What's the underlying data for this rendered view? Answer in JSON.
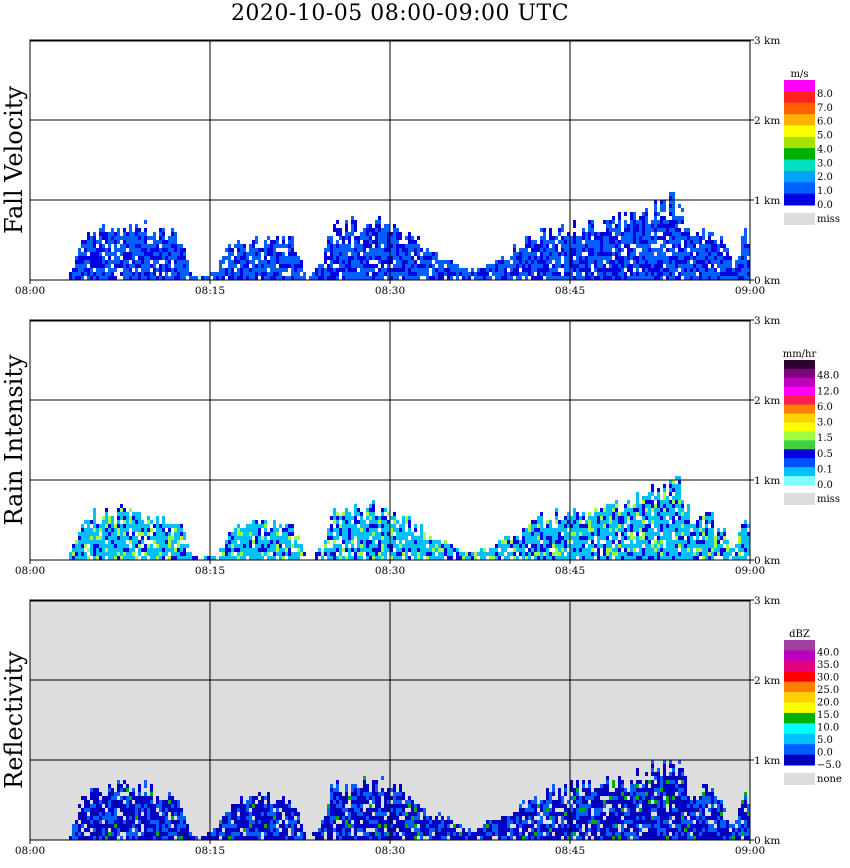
{
  "title": "2020-10-05   08:00-09:00 UTC",
  "colors": {
    "missing_gray": "#dddddd",
    "grid": "#000000"
  },
  "chart_data": [
    {
      "type": "heatmap",
      "name": "fall-velocity",
      "ylabel": "Fall Velocity",
      "x_ticks": [
        "08:00",
        "08:15",
        "08:30",
        "08:45",
        "09:00"
      ],
      "y_ticks": [
        "0 km",
        "1 km",
        "2 km",
        "3 km"
      ],
      "xlim": [
        "08:00",
        "09:00"
      ],
      "ylim_km": [
        0,
        3.0
      ],
      "background": "#ffffff",
      "colorbar": {
        "unit": "m/s",
        "labels": [
          "8.0",
          "7.0",
          "6.0",
          "5.0",
          "4.0",
          "3.0",
          "2.0",
          "1.0",
          "0.0"
        ],
        "colors": [
          "#ff00ff",
          "#ff2020",
          "#ff6000",
          "#ffb000",
          "#ffff00",
          "#a8e000",
          "#00b000",
          "#00e0c0",
          "#00a0ff",
          "#0060ff",
          "#0000e0"
        ],
        "missing_label": "miss",
        "missing_color": "#dddddd"
      },
      "echo_top_km": [
        [
          0.5,
          0
        ],
        [
          3,
          0
        ],
        [
          4.5,
          0.6
        ],
        [
          7,
          0.7
        ],
        [
          10,
          0.65
        ],
        [
          12.5,
          0.55
        ],
        [
          13.2,
          0.1
        ],
        [
          14,
          0
        ],
        [
          15.5,
          0.15
        ],
        [
          16.5,
          0.45
        ],
        [
          18,
          0.5
        ],
        [
          21,
          0.55
        ],
        [
          22,
          0.45
        ],
        [
          23,
          0
        ],
        [
          24.2,
          0.2
        ],
        [
          25,
          0.65
        ],
        [
          27,
          0.7
        ],
        [
          29,
          0.72
        ],
        [
          30.5,
          0.65
        ],
        [
          32,
          0.5
        ],
        [
          33,
          0.35
        ],
        [
          35,
          0.25
        ],
        [
          36,
          0.15
        ],
        [
          37,
          0.12
        ],
        [
          38,
          0.2
        ],
        [
          40,
          0.35
        ],
        [
          42,
          0.55
        ],
        [
          45,
          0.65
        ],
        [
          48,
          0.7
        ],
        [
          51,
          0.85
        ],
        [
          54,
          1.0
        ],
        [
          55,
          0.55
        ],
        [
          56,
          0.7
        ],
        [
          57.5,
          0.5
        ],
        [
          58.5,
          0.2
        ],
        [
          59.5,
          0.6
        ],
        [
          60,
          0.4
        ]
      ],
      "precip_classes": [
        {
          "label": "2.0",
          "share": 0.6
        },
        {
          "label": "1.0",
          "share": 0.3
        },
        {
          "label": "0.0",
          "share": 0.1
        }
      ]
    },
    {
      "type": "heatmap",
      "name": "rain-intensity",
      "ylabel": "Rain Intensity",
      "x_ticks": [
        "08:00",
        "08:15",
        "08:30",
        "08:45",
        "09:00"
      ],
      "y_ticks": [
        "0 km",
        "1 km",
        "2 km",
        "3 km"
      ],
      "xlim": [
        "08:00",
        "09:00"
      ],
      "ylim_km": [
        0,
        3.0
      ],
      "background": "#ffffff",
      "colorbar": {
        "unit": "mm/hr",
        "labels": [
          "48.0",
          "12.0",
          "6.0",
          "3.0",
          "1.5",
          "0.5",
          "0.1",
          "0.0"
        ],
        "colors": [
          "#300030",
          "#800080",
          "#c000c0",
          "#ff00ff",
          "#ff2050",
          "#ff8000",
          "#ffd000",
          "#ffff00",
          "#a0ff40",
          "#40d040",
          "#0000e0",
          "#0050ff",
          "#00c0ff",
          "#80ffff"
        ],
        "missing_label": "miss",
        "missing_color": "#dddddd"
      },
      "echo_top_km": [
        [
          0.5,
          0
        ],
        [
          3,
          0
        ],
        [
          4.5,
          0.55
        ],
        [
          7,
          0.6
        ],
        [
          10,
          0.55
        ],
        [
          12.5,
          0.45
        ],
        [
          13.2,
          0.1
        ],
        [
          14,
          0
        ],
        [
          15.5,
          0.1
        ],
        [
          16.5,
          0.4
        ],
        [
          18,
          0.45
        ],
        [
          21,
          0.5
        ],
        [
          22,
          0.4
        ],
        [
          23,
          0
        ],
        [
          24.2,
          0.15
        ],
        [
          25,
          0.6
        ],
        [
          27,
          0.65
        ],
        [
          29,
          0.65
        ],
        [
          30.5,
          0.6
        ],
        [
          32,
          0.45
        ],
        [
          33,
          0.3
        ],
        [
          35,
          0.2
        ],
        [
          36,
          0.1
        ],
        [
          37,
          0.1
        ],
        [
          38,
          0.15
        ],
        [
          40,
          0.3
        ],
        [
          42,
          0.5
        ],
        [
          45,
          0.6
        ],
        [
          48,
          0.65
        ],
        [
          51,
          0.8
        ],
        [
          54,
          0.95
        ],
        [
          55,
          0.5
        ],
        [
          56,
          0.6
        ],
        [
          57.5,
          0.45
        ],
        [
          58.5,
          0.15
        ],
        [
          59.5,
          0.55
        ],
        [
          60,
          0.35
        ]
      ],
      "precip_classes": [
        {
          "label": "0.1",
          "share": 0.65
        },
        {
          "label": "0.5",
          "share": 0.22
        },
        {
          "label": "1.5",
          "share": 0.13
        }
      ]
    },
    {
      "type": "heatmap",
      "name": "reflectivity",
      "ylabel": "Reflectivity",
      "x_ticks": [
        "08:00",
        "08:15",
        "08:30",
        "08:45",
        "09:00"
      ],
      "y_ticks": [
        "0 km",
        "1 km",
        "2 km",
        "3 km"
      ],
      "xlim": [
        "08:00",
        "09:00"
      ],
      "ylim_km": [
        0,
        3.0
      ],
      "background": "#dddddd",
      "colorbar": {
        "unit": "dBZ",
        "labels": [
          "40.0",
          "35.0",
          "30.0",
          "25.0",
          "20.0",
          "15.0",
          "10.0",
          "5.0",
          "0.0",
          "−5.0"
        ],
        "colors": [
          "#a040a0",
          "#c000c0",
          "#e00080",
          "#ff0000",
          "#ff8000",
          "#ffd000",
          "#ffff00",
          "#00b000",
          "#00ffff",
          "#00c0ff",
          "#0060ff",
          "#0000c0"
        ],
        "missing_label": "none",
        "missing_color": "#dddddd"
      },
      "echo_top_km": [
        [
          0.5,
          0
        ],
        [
          3,
          0
        ],
        [
          4.5,
          0.6
        ],
        [
          7,
          0.75
        ],
        [
          10,
          0.65
        ],
        [
          12.5,
          0.55
        ],
        [
          13.2,
          0.1
        ],
        [
          14,
          0
        ],
        [
          15.5,
          0.15
        ],
        [
          16.5,
          0.45
        ],
        [
          18,
          0.5
        ],
        [
          21,
          0.55
        ],
        [
          22,
          0.45
        ],
        [
          23,
          0
        ],
        [
          24.2,
          0.2
        ],
        [
          25,
          0.65
        ],
        [
          27,
          0.7
        ],
        [
          29,
          0.72
        ],
        [
          30.5,
          0.65
        ],
        [
          32,
          0.5
        ],
        [
          33,
          0.35
        ],
        [
          35,
          0.25
        ],
        [
          36,
          0.15
        ],
        [
          37,
          0.12
        ],
        [
          38,
          0.2
        ],
        [
          40,
          0.35
        ],
        [
          42,
          0.55
        ],
        [
          45,
          0.65
        ],
        [
          48,
          0.7
        ],
        [
          51,
          0.85
        ],
        [
          54,
          1.0
        ],
        [
          55,
          0.55
        ],
        [
          56,
          0.7
        ],
        [
          57.5,
          0.5
        ],
        [
          58.5,
          0.2
        ],
        [
          59.5,
          0.6
        ],
        [
          60,
          0.4
        ]
      ],
      "precip_classes": [
        {
          "label": "0.0",
          "share": 0.45
        },
        {
          "label": "5.0",
          "share": 0.3
        },
        {
          "label": "−5.0",
          "share": 0.2
        },
        {
          "label": "15.0",
          "share": 0.05
        }
      ]
    }
  ]
}
